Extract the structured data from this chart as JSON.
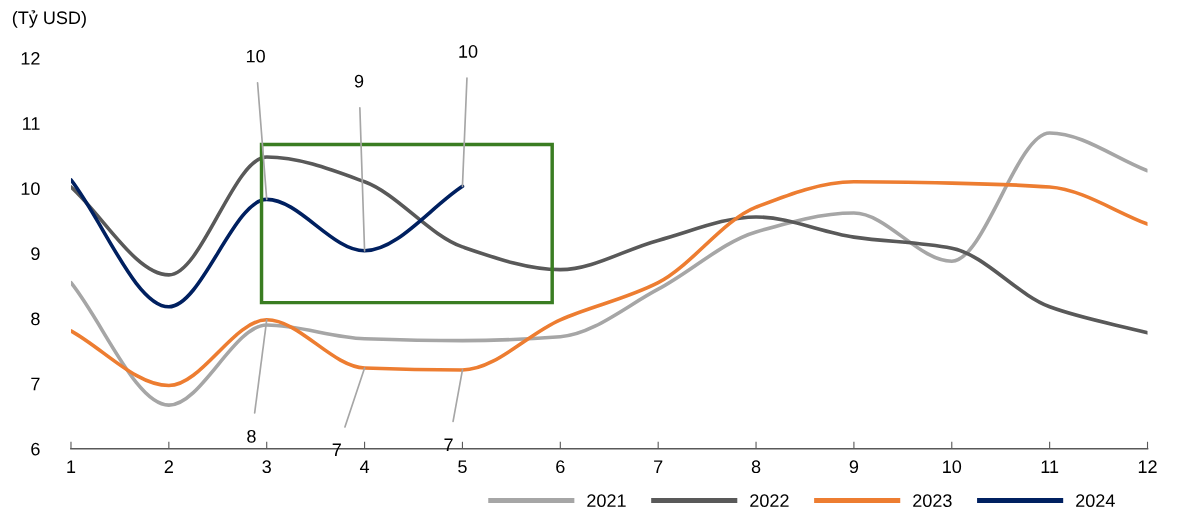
{
  "chart_data": {
    "type": "line",
    "ylabel": "(Tỷ USD)",
    "x": [
      1,
      2,
      3,
      4,
      5,
      6,
      7,
      8,
      9,
      10,
      11,
      12
    ],
    "xlim": [
      1,
      12
    ],
    "xticks": [
      1,
      2,
      3,
      4,
      5,
      6,
      7,
      8,
      9,
      10,
      11,
      12
    ],
    "ylim": [
      6,
      12
    ],
    "yticks": [
      6,
      7,
      8,
      9,
      10,
      11,
      12
    ],
    "grid": false,
    "legend": "bottom",
    "marker": "none",
    "line_style": "solid",
    "series": [
      {
        "name": "2021",
        "color": "#a6a6a6",
        "values": [
          8.55,
          6.67,
          7.9,
          7.69,
          7.66,
          7.72,
          8.45,
          9.33,
          9.62,
          8.88,
          10.85,
          10.27
        ]
      },
      {
        "name": "2022",
        "color": "#595959",
        "values": [
          10.02,
          8.67,
          10.48,
          10.1,
          9.1,
          8.75,
          9.2,
          9.56,
          9.25,
          9.08,
          8.18,
          7.78
        ]
      },
      {
        "name": "2023",
        "color": "#ed7d31",
        "values": [
          7.81,
          6.97,
          7.98,
          7.24,
          7.21,
          7.98,
          8.55,
          9.71,
          10.1,
          10.08,
          10.02,
          9.45
        ]
      },
      {
        "name": "2024",
        "color": "#002060",
        "values": [
          10.13,
          8.18,
          9.83,
          9.04,
          10.03,
          null,
          null,
          null,
          null,
          null,
          null,
          null
        ]
      }
    ],
    "annotations": [
      {
        "text": "10",
        "x": 3,
        "y": 9.83
      },
      {
        "text": "9",
        "x": 4,
        "y": 9.04
      },
      {
        "text": "10",
        "x": 5,
        "y": 10.03
      },
      {
        "text": "8",
        "x": 3,
        "y": 7.98
      },
      {
        "text": "7",
        "x": 4,
        "y": 7.24
      },
      {
        "text": "7",
        "x": 5,
        "y": 7.21
      }
    ]
  }
}
